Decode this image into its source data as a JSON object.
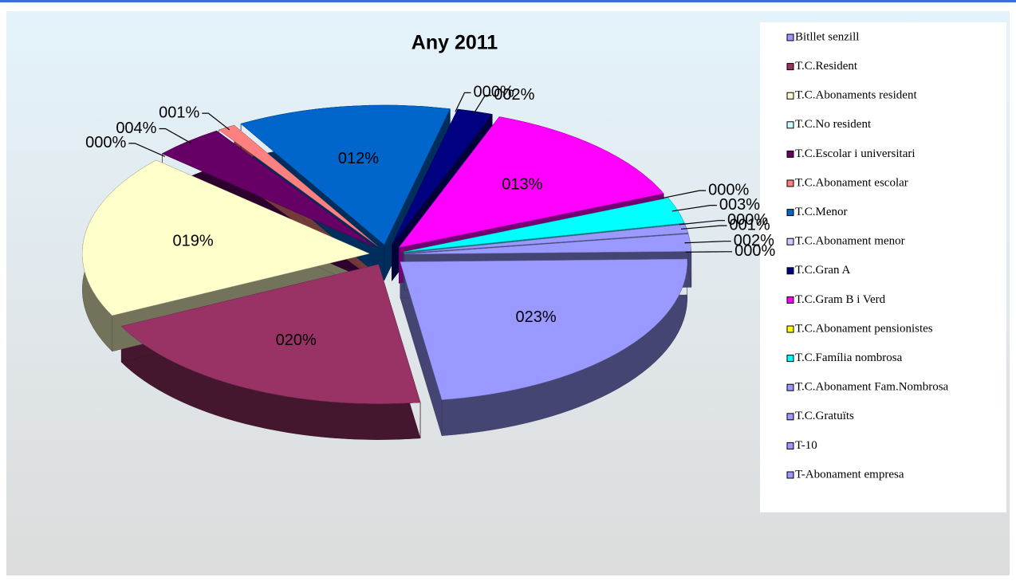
{
  "chart_data": {
    "type": "pie",
    "title": "Any 2011",
    "categories": [
      "Bitllet senzill",
      "T.C.Resident",
      "T.C.Abonaments resident",
      "T.C.No resident",
      "T.C.Escolar i universitari",
      "T.C.Abonament escolar",
      "T.C.Menor",
      "T.C.Abonament menor",
      "T.C.Gran A",
      "T.C.Gram B i Verd",
      "T.C.Abonament pensionistes",
      "T.C.Família nombrosa",
      "T.C.Abonament Fam.Nombrosa",
      "T.C.Gratuïts",
      "T-10",
      "T-Abonament empresa"
    ],
    "values": [
      23,
      20,
      19,
      0,
      4,
      1,
      12,
      0,
      2,
      13,
      0,
      3,
      0,
      1,
      2,
      0
    ],
    "value_labels": [
      "023%",
      "020%",
      "019%",
      "000%",
      "004%",
      "001%",
      "012%",
      "000%",
      "002%",
      "013%",
      "000%",
      "003%",
      "000%",
      "001%",
      "002%",
      "000%"
    ],
    "colors": [
      "#9999ff",
      "#993366",
      "#ffffcc",
      "#ccffff",
      "#660066",
      "#ff8080",
      "#0066cc",
      "#ccccff",
      "#000080",
      "#ff00ff",
      "#ffff00",
      "#00ffff",
      "#9999ff",
      "#9999ff",
      "#9999ff",
      "#9999ff"
    ],
    "legend": "right"
  }
}
